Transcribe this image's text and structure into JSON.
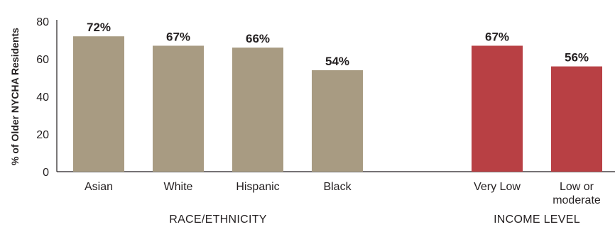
{
  "chart_data": {
    "type": "bar",
    "ylabel": "% of Older NYCHA Residents",
    "ylim": [
      0,
      80
    ],
    "yticks": [
      "0",
      "20",
      "40",
      "60",
      "80"
    ],
    "grid": false,
    "groups": [
      {
        "label": "RACE/ETHNICITY",
        "color": "#a89b82",
        "categories": [
          {
            "label": [
              "Asian"
            ],
            "value": 72,
            "value_label": "72%"
          },
          {
            "label": [
              "White"
            ],
            "value": 67,
            "value_label": "67%"
          },
          {
            "label": [
              "Hispanic"
            ],
            "value": 66,
            "value_label": "66%"
          },
          {
            "label": [
              "Black"
            ],
            "value": 54,
            "value_label": "54%"
          }
        ]
      },
      {
        "label": "INCOME LEVEL",
        "color": "#b84044",
        "categories": [
          {
            "label": [
              "Very Low"
            ],
            "value": 67,
            "value_label": "67%"
          },
          {
            "label": [
              "Low or",
              "moderate"
            ],
            "value": 56,
            "value_label": "56%"
          }
        ]
      }
    ]
  }
}
